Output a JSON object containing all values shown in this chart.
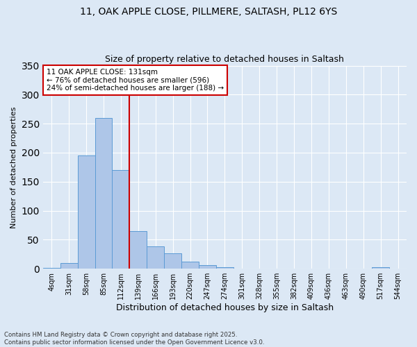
{
  "title_line1": "11, OAK APPLE CLOSE, PILLMERE, SALTASH, PL12 6YS",
  "title_line2": "Size of property relative to detached houses in Saltash",
  "xlabel": "Distribution of detached houses by size in Saltash",
  "ylabel": "Number of detached properties",
  "bins": [
    "4sqm",
    "31sqm",
    "58sqm",
    "85sqm",
    "112sqm",
    "139sqm",
    "166sqm",
    "193sqm",
    "220sqm",
    "247sqm",
    "274sqm",
    "301sqm",
    "328sqm",
    "355sqm",
    "382sqm",
    "409sqm",
    "436sqm",
    "463sqm",
    "490sqm",
    "517sqm",
    "544sqm"
  ],
  "values": [
    2,
    10,
    195,
    260,
    170,
    65,
    38,
    27,
    12,
    6,
    3,
    0,
    0,
    0,
    0,
    0,
    0,
    0,
    0,
    3,
    0
  ],
  "bar_color": "#aec6e8",
  "bar_edge_color": "#5b9bd5",
  "vline_bin_index": 4,
  "annotation_text": "11 OAK APPLE CLOSE: 131sqm\n← 76% of detached houses are smaller (596)\n24% of semi-detached houses are larger (188) →",
  "annotation_box_color": "#ffffff",
  "annotation_box_edge": "#cc0000",
  "vline_color": "#cc0000",
  "footer": "Contains HM Land Registry data © Crown copyright and database right 2025.\nContains public sector information licensed under the Open Government Licence v3.0.",
  "background_color": "#dce8f5",
  "grid_color": "#ffffff",
  "ylim": [
    0,
    350
  ],
  "yticks": [
    0,
    50,
    100,
    150,
    200,
    250,
    300,
    350
  ]
}
